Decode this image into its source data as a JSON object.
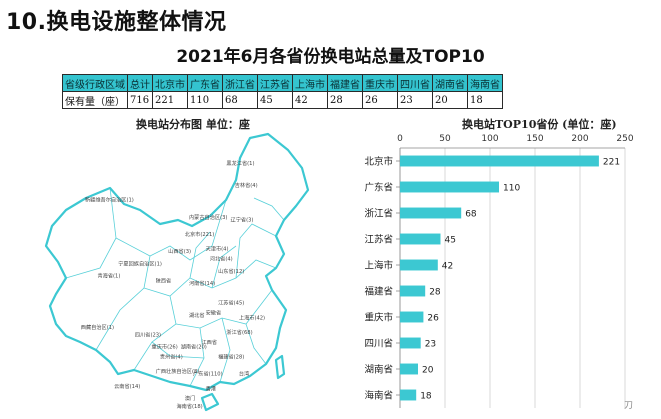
{
  "heading": "10.换电设施整体情况",
  "subtitle": "2021年6月各省份换电站总量及TOP10",
  "table": {
    "header": [
      "省级行政区域",
      "总计",
      "北京市",
      "广东省",
      "浙江省",
      "江苏省",
      "上海市",
      "福建省",
      "重庆市",
      "四川省",
      "湖南省",
      "海南省"
    ],
    "row": [
      "保有量（座）",
      "716",
      "221",
      "110",
      "68",
      "45",
      "42",
      "28",
      "26",
      "23",
      "20",
      "18"
    ]
  },
  "map": {
    "title": "换电站分布图    单位：座",
    "labels": [
      {
        "text": "黑龙江省(1)",
        "lx": 0.4,
        "ly": 0.11
      },
      {
        "text": "吉林省(4)",
        "lx": 0.42,
        "ly": 0.2
      },
      {
        "text": "新疆维吾尔自治区(1)",
        "lx": 0.06,
        "ly": 0.26
      },
      {
        "text": "内蒙古自治区(3)",
        "lx": 0.31,
        "ly": 0.33
      },
      {
        "text": "北京市(221)",
        "lx": 0.3,
        "ly": 0.4
      },
      {
        "text": "辽宁省(3)",
        "lx": 0.41,
        "ly": 0.34
      },
      {
        "text": "天津市(4)",
        "lx": 0.35,
        "ly": 0.46
      },
      {
        "text": "河北省(4)",
        "lx": 0.36,
        "ly": 0.5
      },
      {
        "text": "山西省(3)",
        "lx": 0.26,
        "ly": 0.47
      },
      {
        "text": "宁夏回族自治区(1)",
        "lx": 0.14,
        "ly": 0.52
      },
      {
        "text": "山东省(12)",
        "lx": 0.38,
        "ly": 0.55
      },
      {
        "text": "青海省(1)",
        "lx": 0.09,
        "ly": 0.57
      },
      {
        "text": "河南省(14)",
        "lx": 0.31,
        "ly": 0.6
      },
      {
        "text": "陕西省",
        "lx": 0.23,
        "ly": 0.59
      },
      {
        "text": "江苏省(45)",
        "lx": 0.38,
        "ly": 0.68
      },
      {
        "text": "上海市(42)",
        "lx": 0.43,
        "ly": 0.74
      },
      {
        "text": "西藏自治区(1)",
        "lx": 0.05,
        "ly": 0.78
      },
      {
        "text": "湖北省",
        "lx": 0.31,
        "ly": 0.73
      },
      {
        "text": "安徽省",
        "lx": 0.35,
        "ly": 0.72
      },
      {
        "text": "四川省(23)",
        "lx": 0.18,
        "ly": 0.81
      },
      {
        "text": "重庆市(26)",
        "lx": 0.22,
        "ly": 0.86
      },
      {
        "text": "浙江省(68)",
        "lx": 0.4,
        "ly": 0.8
      },
      {
        "text": "湖南省(20)",
        "lx": 0.29,
        "ly": 0.86
      },
      {
        "text": "江西省",
        "lx": 0.34,
        "ly": 0.84
      },
      {
        "text": "贵州省(4)",
        "lx": 0.24,
        "ly": 0.9
      },
      {
        "text": "福建省(28)",
        "lx": 0.38,
        "ly": 0.9
      },
      {
        "text": "广西壮族自治区(8)",
        "lx": 0.23,
        "ly": 0.96
      },
      {
        "text": "广东省(110)",
        "lx": 0.32,
        "ly": 0.97
      },
      {
        "text": "台湾",
        "lx": 0.43,
        "ly": 0.97
      },
      {
        "text": "云南省(14)",
        "lx": 0.13,
        "ly": 1.02
      },
      {
        "text": "香港",
        "lx": 0.35,
        "ly": 1.03
      },
      {
        "text": "澳门",
        "lx": 0.3,
        "ly": 1.07
      },
      {
        "text": "海南省(18)",
        "lx": 0.28,
        "ly": 1.13
      }
    ]
  },
  "chart_data": {
    "type": "bar",
    "orientation": "horizontal",
    "title": "换电站TOP10省份 (单位：座)",
    "categories": [
      "北京市",
      "广东省",
      "浙江省",
      "江苏省",
      "上海市",
      "福建省",
      "重庆市",
      "四川省",
      "湖南省",
      "海南省"
    ],
    "values": [
      221,
      110,
      68,
      45,
      42,
      28,
      26,
      23,
      20,
      18
    ],
    "xlim": [
      0,
      250
    ],
    "xticks": [
      0,
      50,
      100,
      150,
      200,
      250
    ],
    "axis_position": "top",
    "grid": true,
    "data_labels": true
  },
  "colors": {
    "bar": "#3cc8d2",
    "table_header": "#34c4cf",
    "map_outline": "#3cc8d2"
  },
  "footer_mark": "刀"
}
